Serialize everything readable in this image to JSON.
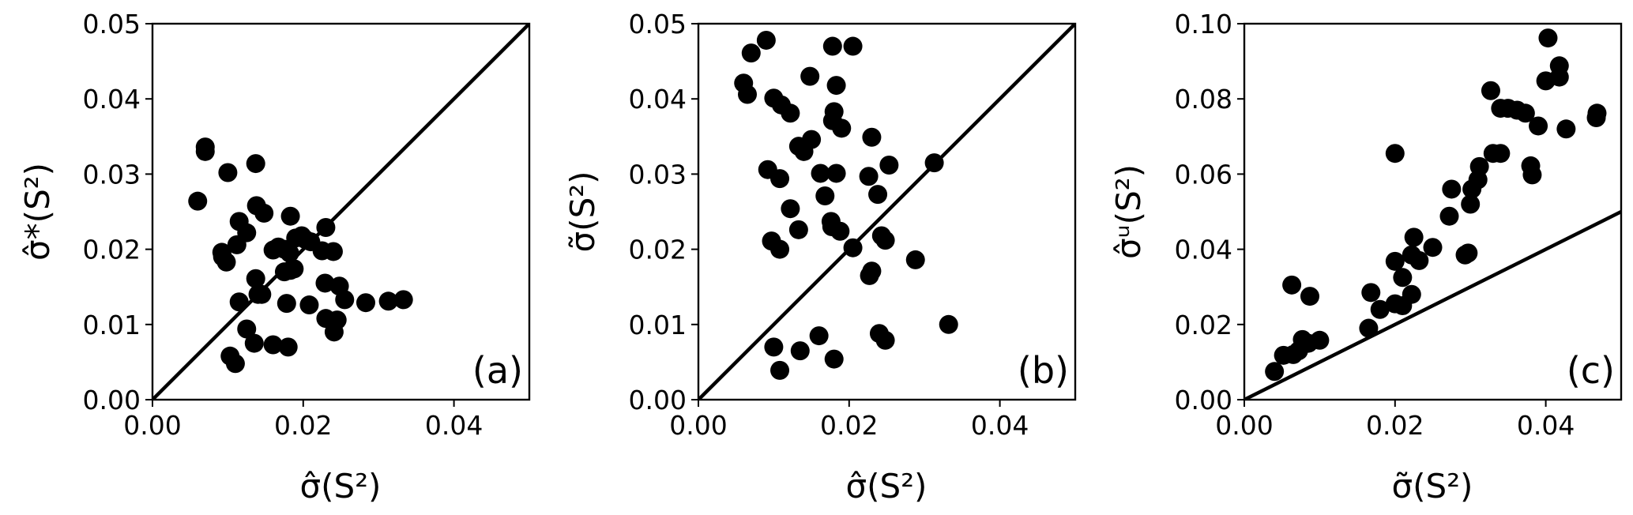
{
  "chart_data": [
    {
      "type": "scatter",
      "panel_label": "(a)",
      "xlabel": "σ̂(S²)",
      "ylabel": "σ̂*(S²)",
      "xlim": [
        0,
        0.05
      ],
      "ylim": [
        0,
        0.05
      ],
      "xticks": [
        "0.00",
        "0.02",
        "0.04"
      ],
      "yticks": [
        "0.00",
        "0.01",
        "0.02",
        "0.03",
        "0.04",
        "0.05"
      ],
      "reference_line": "y = x",
      "points": [
        [
          0.006,
          0.0264
        ],
        [
          0.007,
          0.0336
        ],
        [
          0.007,
          0.033
        ],
        [
          0.01,
          0.0302
        ],
        [
          0.0137,
          0.0314
        ],
        [
          0.0138,
          0.0258
        ],
        [
          0.0148,
          0.0248
        ],
        [
          0.0183,
          0.0244
        ],
        [
          0.0115,
          0.0237
        ],
        [
          0.0125,
          0.0222
        ],
        [
          0.0112,
          0.0206
        ],
        [
          0.0092,
          0.0196
        ],
        [
          0.0098,
          0.0183
        ],
        [
          0.0093,
          0.019
        ],
        [
          0.016,
          0.0199
        ],
        [
          0.0167,
          0.0203
        ],
        [
          0.0175,
          0.02
        ],
        [
          0.0182,
          0.0195
        ],
        [
          0.019,
          0.0215
        ],
        [
          0.0198,
          0.0218
        ],
        [
          0.0203,
          0.0213
        ],
        [
          0.021,
          0.021
        ],
        [
          0.023,
          0.0229
        ],
        [
          0.0225,
          0.0198
        ],
        [
          0.024,
          0.0197
        ],
        [
          0.0175,
          0.017
        ],
        [
          0.0183,
          0.0172
        ],
        [
          0.0188,
          0.0174
        ],
        [
          0.0137,
          0.0161
        ],
        [
          0.014,
          0.014
        ],
        [
          0.0145,
          0.014
        ],
        [
          0.0115,
          0.013
        ],
        [
          0.0178,
          0.0128
        ],
        [
          0.0208,
          0.0126
        ],
        [
          0.0229,
          0.0155
        ],
        [
          0.0248,
          0.0151
        ],
        [
          0.0255,
          0.0133
        ],
        [
          0.0283,
          0.0129
        ],
        [
          0.0313,
          0.0131
        ],
        [
          0.0333,
          0.0133
        ],
        [
          0.023,
          0.0108
        ],
        [
          0.0245,
          0.0106
        ],
        [
          0.0241,
          0.009
        ],
        [
          0.0125,
          0.0094
        ],
        [
          0.0135,
          0.0075
        ],
        [
          0.016,
          0.0073
        ],
        [
          0.018,
          0.007
        ],
        [
          0.0103,
          0.0058
        ],
        [
          0.011,
          0.0048
        ]
      ]
    },
    {
      "type": "scatter",
      "panel_label": "(b)",
      "xlabel": "σ̂(S²)",
      "ylabel": "σ̃(S²)",
      "xlim": [
        0,
        0.05
      ],
      "ylim": [
        0,
        0.05
      ],
      "xticks": [
        "0.00",
        "0.02",
        "0.04"
      ],
      "yticks": [
        "0.00",
        "0.01",
        "0.02",
        "0.03",
        "0.04",
        "0.05"
      ],
      "reference_line": "y = x",
      "points": [
        [
          0.009,
          0.0478
        ],
        [
          0.007,
          0.0461
        ],
        [
          0.006,
          0.0421
        ],
        [
          0.0065,
          0.0406
        ],
        [
          0.0178,
          0.047
        ],
        [
          0.0205,
          0.047
        ],
        [
          0.0148,
          0.043
        ],
        [
          0.0183,
          0.0418
        ],
        [
          0.01,
          0.0401
        ],
        [
          0.011,
          0.0392
        ],
        [
          0.0122,
          0.0381
        ],
        [
          0.018,
          0.0383
        ],
        [
          0.0178,
          0.0371
        ],
        [
          0.019,
          0.0361
        ],
        [
          0.015,
          0.0346
        ],
        [
          0.0133,
          0.0337
        ],
        [
          0.014,
          0.033
        ],
        [
          0.023,
          0.0349
        ],
        [
          0.0092,
          0.0306
        ],
        [
          0.0108,
          0.0294
        ],
        [
          0.0162,
          0.0301
        ],
        [
          0.0183,
          0.0301
        ],
        [
          0.0226,
          0.0297
        ],
        [
          0.0253,
          0.0312
        ],
        [
          0.0313,
          0.0315
        ],
        [
          0.0168,
          0.0271
        ],
        [
          0.0238,
          0.0273
        ],
        [
          0.0122,
          0.0254
        ],
        [
          0.0176,
          0.0237
        ],
        [
          0.0177,
          0.023
        ],
        [
          0.0188,
          0.0224
        ],
        [
          0.0133,
          0.0226
        ],
        [
          0.0243,
          0.0218
        ],
        [
          0.0248,
          0.0212
        ],
        [
          0.0097,
          0.0211
        ],
        [
          0.0108,
          0.02
        ],
        [
          0.0205,
          0.0202
        ],
        [
          0.0288,
          0.0186
        ],
        [
          0.023,
          0.0171
        ],
        [
          0.0227,
          0.0165
        ],
        [
          0.0332,
          0.01
        ],
        [
          0.024,
          0.0088
        ],
        [
          0.0248,
          0.0079
        ],
        [
          0.016,
          0.0085
        ],
        [
          0.01,
          0.007
        ],
        [
          0.0135,
          0.0065
        ],
        [
          0.018,
          0.0054
        ],
        [
          0.0108,
          0.0039
        ]
      ]
    },
    {
      "type": "scatter",
      "panel_label": "(c)",
      "xlabel": "σ̃(S²)",
      "ylabel": "σ̂ᵘ(S²)",
      "xlim": [
        0,
        0.05
      ],
      "ylim": [
        0,
        0.1
      ],
      "xticks": [
        "0.00",
        "0.02",
        "0.04"
      ],
      "yticks": [
        "0.00",
        "0.02",
        "0.04",
        "0.06",
        "0.08",
        "0.10"
      ],
      "reference_line": "y = x",
      "points": [
        [
          0.004,
          0.0075
        ],
        [
          0.0052,
          0.0118
        ],
        [
          0.0065,
          0.012
        ],
        [
          0.0072,
          0.013
        ],
        [
          0.0077,
          0.016
        ],
        [
          0.0085,
          0.015
        ],
        [
          0.01,
          0.0158
        ],
        [
          0.0063,
          0.0305
        ],
        [
          0.0087,
          0.0275
        ],
        [
          0.0165,
          0.019
        ],
        [
          0.0168,
          0.0285
        ],
        [
          0.018,
          0.024
        ],
        [
          0.02,
          0.0255
        ],
        [
          0.021,
          0.025
        ],
        [
          0.02,
          0.0368
        ],
        [
          0.021,
          0.0325
        ],
        [
          0.0222,
          0.028
        ],
        [
          0.0222,
          0.0385
        ],
        [
          0.0225,
          0.0432
        ],
        [
          0.0232,
          0.037
        ],
        [
          0.025,
          0.0405
        ],
        [
          0.02,
          0.0655
        ],
        [
          0.0272,
          0.0488
        ],
        [
          0.0275,
          0.056
        ],
        [
          0.0293,
          0.0385
        ],
        [
          0.0297,
          0.039
        ],
        [
          0.03,
          0.052
        ],
        [
          0.0302,
          0.056
        ],
        [
          0.031,
          0.0585
        ],
        [
          0.0312,
          0.062
        ],
        [
          0.0327,
          0.0822
        ],
        [
          0.033,
          0.0655
        ],
        [
          0.034,
          0.0655
        ],
        [
          0.034,
          0.0775
        ],
        [
          0.035,
          0.0775
        ],
        [
          0.0362,
          0.077
        ],
        [
          0.0373,
          0.0762
        ],
        [
          0.038,
          0.0622
        ],
        [
          0.0382,
          0.0598
        ],
        [
          0.039,
          0.0728
        ],
        [
          0.04,
          0.0848
        ],
        [
          0.0403,
          0.0962
        ],
        [
          0.0418,
          0.0858
        ],
        [
          0.0418,
          0.0888
        ],
        [
          0.0427,
          0.072
        ],
        [
          0.0467,
          0.075
        ],
        [
          0.0468,
          0.0762
        ]
      ]
    }
  ]
}
